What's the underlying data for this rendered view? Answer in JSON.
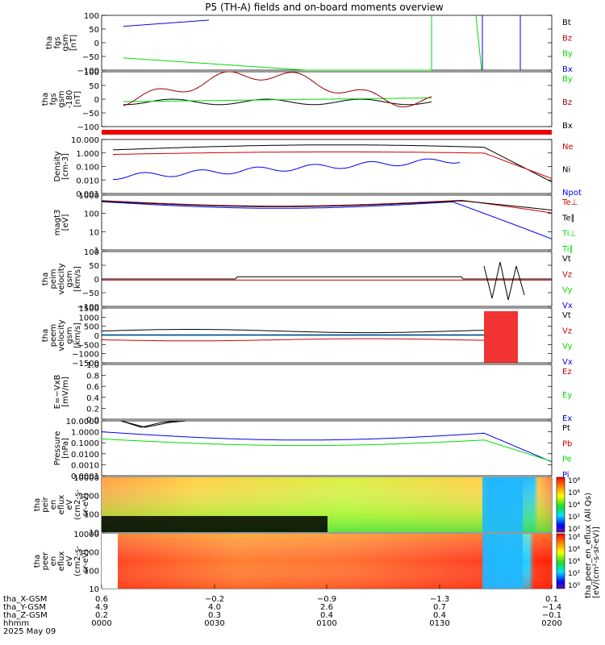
{
  "title": "P5 (TH-A) fields and on-board moments overview",
  "colors": {
    "black": "#000000",
    "red": "#cc0000",
    "green": "#00dd00",
    "blue": "#0000ee",
    "brown": "#990000"
  },
  "chart_data": [
    {
      "type": "line",
      "panel": "fgs-gsm",
      "ylabel_lines": [
        "tha",
        "fgs",
        "gsm",
        "[nT]"
      ],
      "yticks": [
        "100",
        "50",
        "0",
        "−50",
        "−100"
      ],
      "ylim": [
        -100,
        100
      ],
      "legend": [
        {
          "label": "Bt",
          "color": "#000000"
        },
        {
          "label": "Bz",
          "color": "#cc0000"
        },
        {
          "label": "By",
          "color": "#00dd00"
        },
        {
          "label": "Bx",
          "color": "#0000ee"
        }
      ]
    },
    {
      "type": "line",
      "panel": "fgs-gsm-180",
      "ylabel_lines": [
        "tha",
        "fgs",
        "gsm",
        "-180",
        "[nT]"
      ],
      "yticks": [
        "100",
        "50",
        "0",
        "−50",
        "−100"
      ],
      "ylim": [
        -120,
        120
      ],
      "legend": [
        {
          "label": "By",
          "color": "#00dd00"
        },
        {
          "label": "Bz",
          "color": "#990000"
        },
        {
          "label": "Bx",
          "color": "#000000"
        }
      ]
    },
    {
      "type": "line",
      "panel": "density",
      "ylabel_lines": [
        "Density",
        "[cm-3]"
      ],
      "yticks": [
        "10.000",
        "1.000",
        "0.100",
        "0.010",
        "0.001"
      ],
      "scale": "log",
      "legend": [
        {
          "label": "Ne",
          "color": "#cc0000"
        },
        {
          "label": "Ni",
          "color": "#000000"
        },
        {
          "label": "Npot",
          "color": "#0000ee"
        }
      ]
    },
    {
      "type": "line",
      "panel": "temperature",
      "ylabel_lines": [
        "magt3",
        "[eV]"
      ],
      "yticks": [
        "1000",
        "100",
        "10",
        "1"
      ],
      "scale": "log",
      "legend": [
        {
          "label": "Te⊥",
          "color": "#cc0000"
        },
        {
          "label": "Te∥",
          "color": "#000000"
        },
        {
          "label": "Ti⊥",
          "color": "#00dd00"
        },
        {
          "label": "Ti∥",
          "color": "#00dd00"
        }
      ]
    },
    {
      "type": "line",
      "panel": "peim-velocity",
      "ylabel_lines": [
        "tha",
        "peim",
        "velocity",
        "gsm",
        "[km/s]"
      ],
      "yticks": [
        "100",
        "50",
        "0",
        "−50",
        "−100"
      ],
      "ylim": [
        -100,
        100
      ],
      "legend": [
        {
          "label": "Vt",
          "color": "#000000"
        },
        {
          "label": "Vz",
          "color": "#cc0000"
        },
        {
          "label": "Vy",
          "color": "#00dd00"
        },
        {
          "label": "Vx",
          "color": "#0000ee"
        }
      ]
    },
    {
      "type": "line",
      "panel": "peem-velocity",
      "ylabel_lines": [
        "tha",
        "peem",
        "velocity",
        "gsm",
        "[km/s]"
      ],
      "yticks": [
        "1500",
        "1000",
        "500",
        "0",
        "−500",
        "−1000",
        "−1500"
      ],
      "ylim": [
        -1500,
        1500
      ],
      "legend": [
        {
          "label": "Vt",
          "color": "#000000"
        },
        {
          "label": "Vz",
          "color": "#cc0000"
        },
        {
          "label": "Vy",
          "color": "#00dd00"
        },
        {
          "label": "Vx",
          "color": "#0000ee"
        }
      ]
    },
    {
      "type": "line",
      "panel": "efield",
      "ylabel_lines": [
        "E=−VxB",
        "[mV/m]"
      ],
      "yticks": [
        "1.0",
        "0.8",
        "0.6",
        "0.4",
        "0.2",
        "0.0"
      ],
      "ylim": [
        0,
        1
      ],
      "legend": [
        {
          "label": "Ez",
          "color": "#cc0000"
        },
        {
          "label": "Ey",
          "color": "#00dd00"
        },
        {
          "label": "Ex",
          "color": "#0000ee"
        }
      ]
    },
    {
      "type": "line",
      "panel": "pressure",
      "ylabel_lines": [
        "Pressure",
        "[nPa]"
      ],
      "yticks": [
        "10.0000",
        "1.0000",
        "0.1000",
        "0.0100",
        "0.0010",
        "0.0001"
      ],
      "scale": "log",
      "legend": [
        {
          "label": "Pt",
          "color": "#000000"
        },
        {
          "label": "Pb",
          "color": "#cc0000"
        },
        {
          "label": "Pe",
          "color": "#00dd00"
        },
        {
          "label": "Pi",
          "color": "#0000ee"
        }
      ]
    },
    {
      "type": "heatmap",
      "panel": "peir-en",
      "ylabel_lines": [
        "tha",
        "peir",
        "en",
        "eflux",
        "eV",
        "(cm2-s-",
        "sr-eV)"
      ],
      "yticks": [
        "10000",
        "1000",
        "100",
        "10"
      ]
    },
    {
      "type": "heatmap",
      "panel": "peer-en",
      "ylabel_lines": [
        "tha",
        "peer",
        "en",
        "eflux",
        "eV",
        "(cm2-s-",
        "sr-eV)"
      ],
      "yticks": [
        "10000",
        "1000",
        "100",
        "10"
      ]
    }
  ],
  "colorbar": {
    "ticks": [
      "10⁸",
      "10⁶",
      "10⁴",
      "10²",
      "10⁰"
    ],
    "label": "[eV/(cm²-s-sr-eV)]",
    "label2": "tha_peer_en_eflux (All Qs)"
  },
  "xaxis": {
    "rows": [
      {
        "label": "tha_X-GSM",
        "values": [
          "0.6",
          "−0.2",
          "−0.9",
          "−1.3",
          "0.1"
        ]
      },
      {
        "label": "tha_Y-GSM",
        "values": [
          "4.9",
          "4.0",
          "2.6",
          "0.7",
          "−1.4"
        ]
      },
      {
        "label": "tha_Z-GSM",
        "values": [
          "0.2",
          "0.3",
          "0.4",
          "0.4",
          "−0.1"
        ]
      },
      {
        "label": "hhmm",
        "values": [
          "0000",
          "0030",
          "0100",
          "0130",
          "0200"
        ]
      }
    ],
    "date": "2025 May 09"
  }
}
